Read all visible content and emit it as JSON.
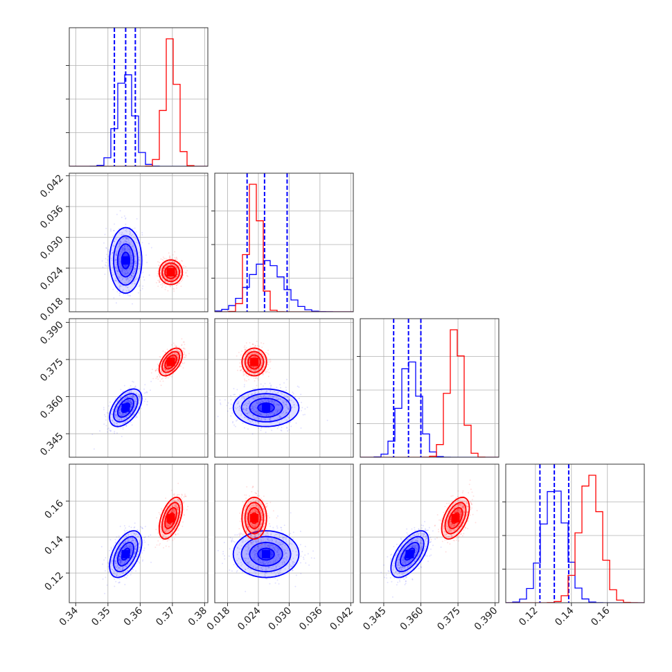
{
  "chart_data": {
    "type": "corner",
    "title": "",
    "parameters": [
      {
        "name": "",
        "range": [
          0.338,
          0.381
        ],
        "ticks": [
          0.34,
          0.35,
          0.36,
          0.37,
          0.38
        ],
        "tick_labels": [
          "0.34",
          "0.35",
          "0.36",
          "0.37",
          "0.38"
        ]
      },
      {
        "name": "",
        "range": [
          0.0155,
          0.0425
        ],
        "ticks": [
          0.018,
          0.024,
          0.03,
          0.036,
          0.042
        ],
        "tick_labels": [
          "0.018",
          "0.024",
          "0.030",
          "0.036",
          "0.042"
        ]
      },
      {
        "name": "",
        "range": [
          0.3355,
          0.3915
        ],
        "ticks": [
          0.345,
          0.36,
          0.375,
          0.39
        ],
        "tick_labels": [
          "0.345",
          "0.360",
          "0.375",
          "0.390"
        ]
      },
      {
        "name": "",
        "range": [
          0.1035,
          0.1805
        ],
        "ticks": [
          0.12,
          0.14,
          0.16
        ],
        "tick_labels": [
          "0.12",
          "0.14",
          "0.16"
        ]
      }
    ],
    "grid": true,
    "series": [
      {
        "color": "#0000ff",
        "means": [
          0.3555,
          0.0255,
          0.3555,
          0.1305
        ],
        "stds": [
          0.0025,
          0.0032,
          0.0038,
          0.0065
        ],
        "correlations": [
          [
            0,
            1,
            0.0
          ],
          [
            0,
            2,
            0.5
          ],
          [
            0,
            3,
            0.5
          ],
          [
            1,
            2,
            0.0
          ],
          [
            1,
            3,
            0.0
          ],
          [
            2,
            3,
            0.6
          ]
        ],
        "quantile_lines": [
          [
            0.352,
            0.3555,
            0.3585
          ],
          [
            0.0218,
            0.0252,
            0.0296
          ],
          [
            0.349,
            0.355,
            0.36
          ],
          [
            0.1225,
            0.1305,
            0.1385
          ]
        ]
      },
      {
        "color": "#ff0000",
        "means": [
          0.3695,
          0.0232,
          0.374,
          0.1505
        ],
        "stds": [
          0.0018,
          0.0012,
          0.0028,
          0.0058
        ],
        "correlations": [
          [
            0,
            1,
            0.0
          ],
          [
            0,
            2,
            0.5
          ],
          [
            0,
            3,
            0.5
          ],
          [
            1,
            2,
            0.0
          ],
          [
            1,
            3,
            0.0
          ],
          [
            2,
            3,
            0.5
          ]
        ],
        "quantile_lines": []
      }
    ]
  }
}
